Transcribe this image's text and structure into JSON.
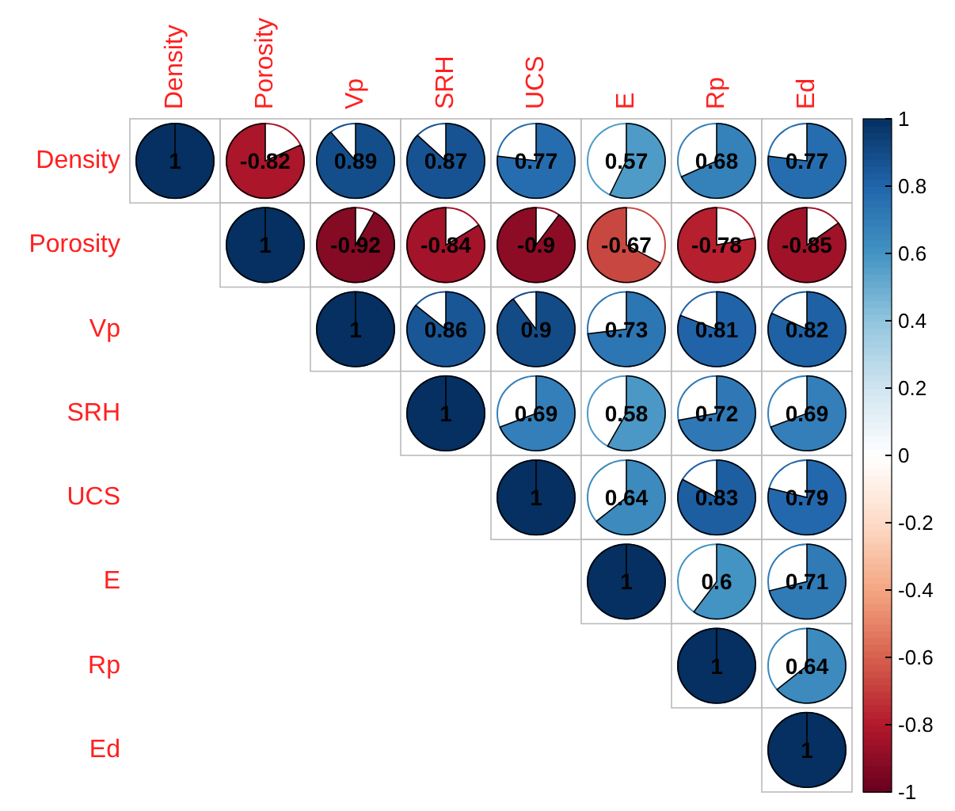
{
  "chart_data": {
    "type": "heatmap",
    "categories": [
      "Density",
      "Porosity",
      "Vp",
      "SRH",
      "UCS",
      "E",
      "Rp",
      "Ed"
    ],
    "y_categories": [
      "Density",
      "Porosity",
      "Vp",
      "SRH",
      "UCS",
      "E",
      "Rp",
      "Ed"
    ],
    "cells": [
      [
        1,
        -0.82,
        0.89,
        0.87,
        0.77,
        0.57,
        0.68,
        0.77
      ],
      [
        null,
        1,
        -0.92,
        -0.84,
        -0.9,
        -0.67,
        -0.78,
        -0.85
      ],
      [
        null,
        null,
        1,
        0.86,
        0.9,
        0.73,
        0.81,
        0.82
      ],
      [
        null,
        null,
        null,
        1,
        0.69,
        0.58,
        0.72,
        0.69
      ],
      [
        null,
        null,
        null,
        null,
        1,
        0.64,
        0.83,
        0.79
      ],
      [
        null,
        null,
        null,
        null,
        null,
        1,
        0.6,
        0.71
      ],
      [
        null,
        null,
        null,
        null,
        null,
        null,
        1,
        0.64
      ],
      [
        null,
        null,
        null,
        null,
        null,
        null,
        null,
        1
      ]
    ],
    "data_labels": true,
    "clim": [
      -1,
      1
    ],
    "cticks": [
      -1,
      -0.8,
      -0.6,
      -0.4,
      -0.2,
      0,
      0.2,
      0.4,
      0.6,
      0.8,
      1
    ]
  }
}
